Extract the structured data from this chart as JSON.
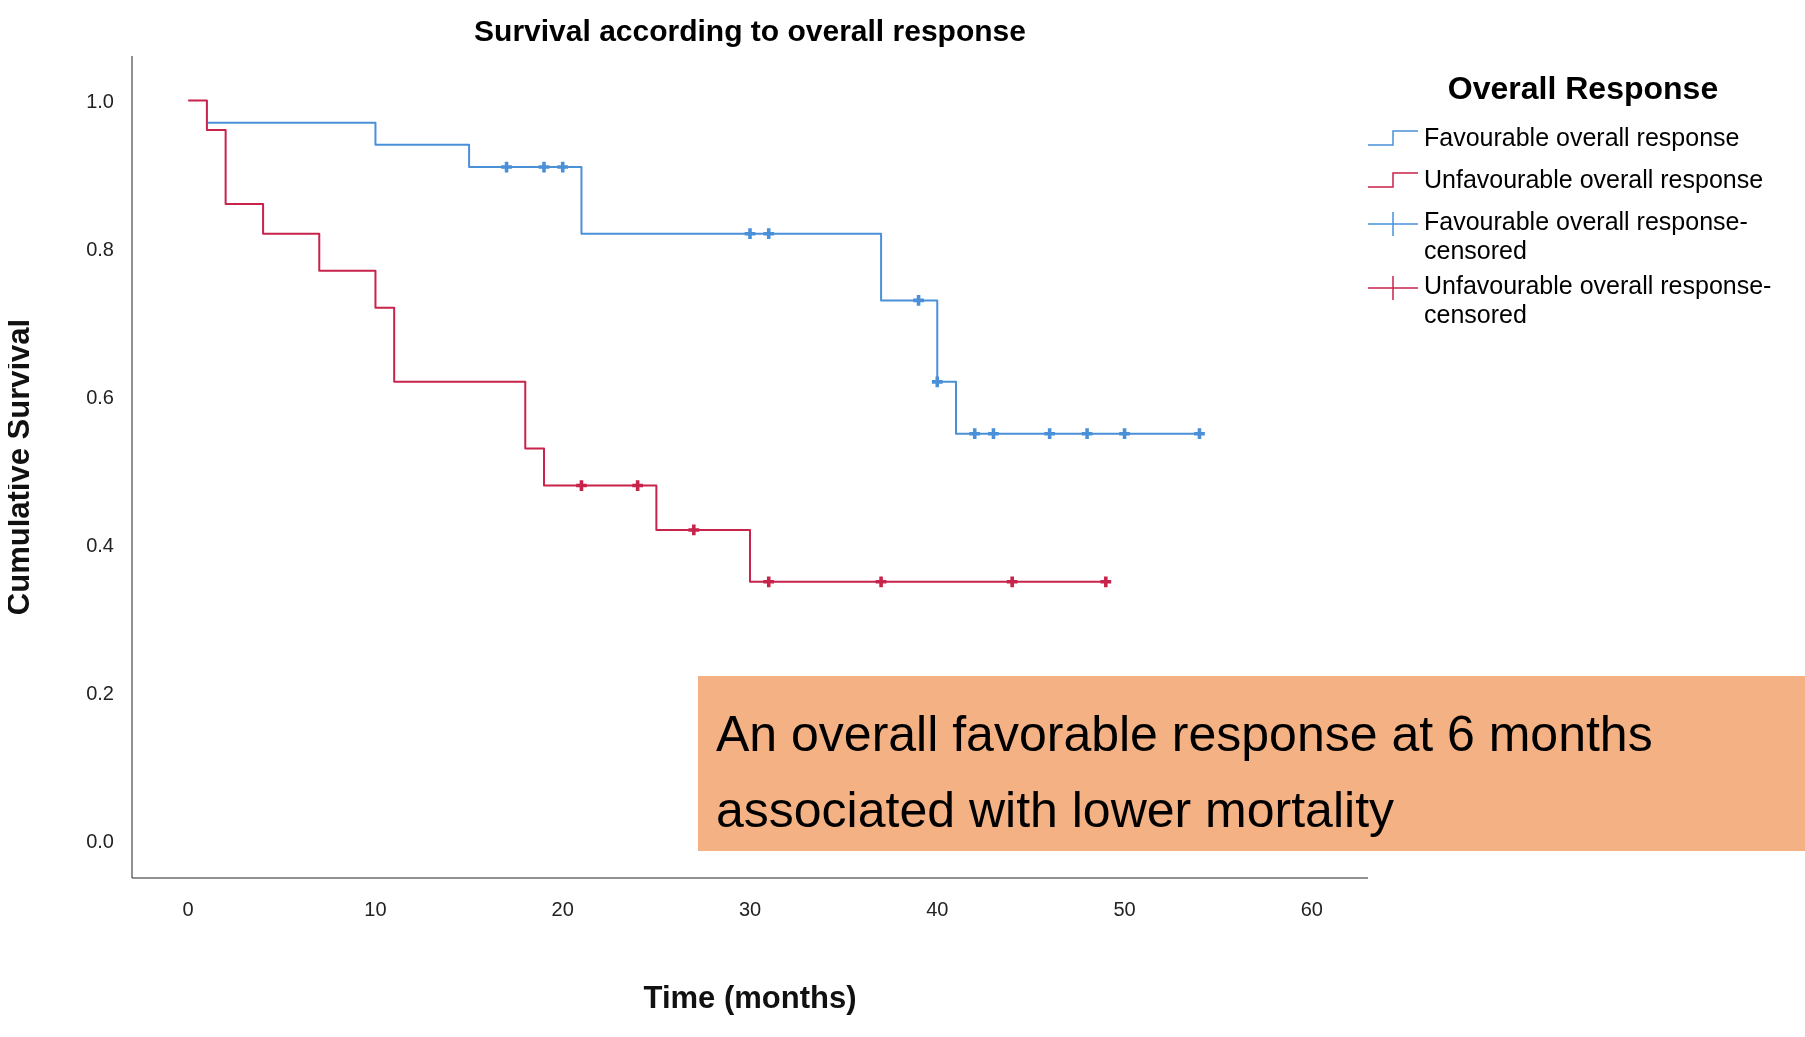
{
  "chart_data": {
    "type": "step",
    "title": "Survival according to overall response",
    "xlabel": "Time (months)",
    "ylabel": "Cumulative Survival",
    "legend_title": "Overall Response",
    "legend": "top right",
    "grid": false,
    "xlim": [
      -3,
      63
    ],
    "xticks": [
      0,
      10,
      20,
      30,
      40,
      50,
      60
    ],
    "ylim": [
      -0.05,
      1.06
    ],
    "yticks": [
      {
        "value": 0,
        "label": "0.0"
      },
      {
        "value": 0.2,
        "label": "0.2"
      },
      {
        "value": 0.4,
        "label": "0.4"
      },
      {
        "value": 0.6,
        "label": "0.6"
      },
      {
        "value": 0.8,
        "label": "0.8"
      },
      {
        "value": 1,
        "label": "1.0"
      }
    ],
    "series": [
      {
        "name": "Favourable overall response",
        "color": "#4a90d9",
        "x": [
          1,
          10,
          15,
          21,
          37,
          40,
          41,
          54
        ],
        "values": [
          0.97,
          0.94,
          0.91,
          0.82,
          0.73,
          0.62,
          0.55,
          0.55
        ]
      },
      {
        "name": "Unfavourable overall response",
        "color": "#c8234a",
        "x": [
          0,
          1,
          2,
          4,
          7,
          10,
          11,
          18,
          19,
          25,
          30,
          49
        ],
        "values": [
          1,
          0.96,
          0.86,
          0.82,
          0.77,
          0.72,
          0.62,
          0.53,
          0.48,
          0.42,
          0.35,
          0.35
        ]
      },
      {
        "name": "Favourable overall response-censored",
        "type": "scatter",
        "marker": "cross",
        "color": "#4a90d9",
        "x": [
          17,
          19,
          20,
          30,
          31,
          39,
          40,
          42,
          43,
          46,
          48,
          50,
          54
        ],
        "values": [
          0.91,
          0.91,
          0.91,
          0.82,
          0.82,
          0.73,
          0.62,
          0.55,
          0.55,
          0.55,
          0.55,
          0.55,
          0.55
        ]
      },
      {
        "name": "Unfavourable overall response-censored",
        "type": "scatter",
        "marker": "cross",
        "color": "#c8234a",
        "x": [
          21,
          24,
          27,
          31,
          37,
          44,
          49
        ],
        "values": [
          0.48,
          0.48,
          0.42,
          0.35,
          0.35,
          0.35,
          0.35
        ]
      }
    ],
    "annotations": [
      "An overall favorable response at 6 months associated with lower mortality"
    ]
  }
}
